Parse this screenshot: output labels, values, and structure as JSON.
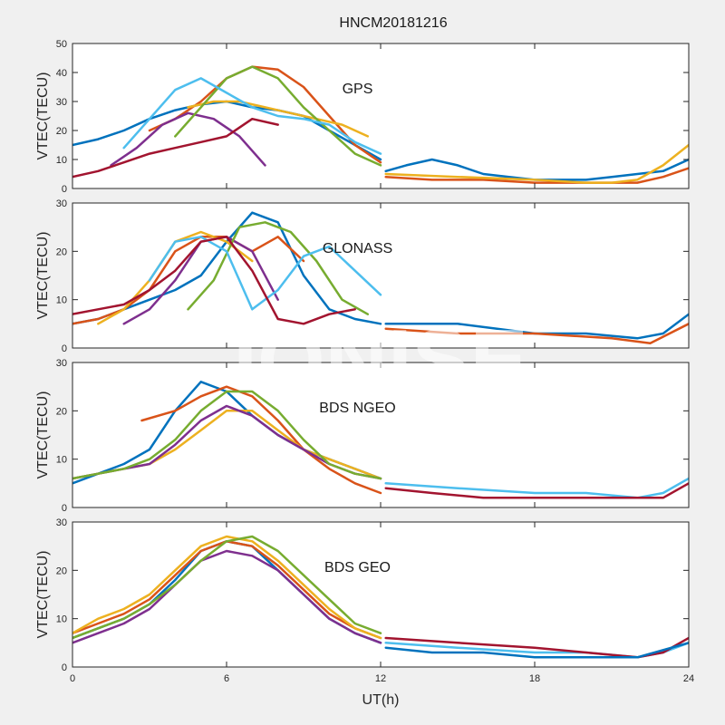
{
  "title": "HNCM20181216",
  "watermark": "IONISE",
  "colors": [
    "#0072BD",
    "#D95319",
    "#EDB120",
    "#7E2F8E",
    "#77AC30",
    "#4DBEEE",
    "#A2142F"
  ],
  "chart_data": [
    {
      "type": "line",
      "annotation": "GPS",
      "ylabel": "VTEC(TECU)",
      "xlabel": "",
      "xlim": [
        0,
        24
      ],
      "ylim": [
        0,
        50
      ],
      "yticks": [
        0,
        10,
        20,
        30,
        40,
        50
      ],
      "xticks": [
        0,
        6,
        12,
        18,
        24
      ],
      "series": [
        {
          "x": [
            0,
            1,
            2,
            3,
            4,
            5,
            6,
            7,
            8,
            9,
            10,
            11,
            12
          ],
          "y": [
            15,
            17,
            20,
            24,
            27,
            29,
            30,
            28,
            27,
            25,
            20,
            15,
            10
          ]
        },
        {
          "x": [
            3,
            4,
            5,
            6,
            7,
            8,
            9,
            10,
            11,
            12
          ],
          "y": [
            20,
            24,
            30,
            38,
            42,
            41,
            35,
            25,
            15,
            9
          ]
        },
        {
          "x": [
            4.5,
            5.5,
            6.5,
            7.5,
            8.5,
            9.5,
            10.5,
            11.5
          ],
          "y": [
            28,
            30,
            30,
            28,
            26,
            24,
            22,
            18
          ]
        },
        {
          "x": [
            1.5,
            2.5,
            3.5,
            4.5,
            5.5,
            6.5,
            7.5
          ],
          "y": [
            8,
            14,
            22,
            26,
            24,
            18,
            8
          ]
        },
        {
          "x": [
            4,
            5,
            6,
            7,
            8,
            9,
            10,
            11,
            12
          ],
          "y": [
            18,
            28,
            38,
            42,
            38,
            28,
            20,
            12,
            8
          ]
        },
        {
          "x": [
            2,
            3,
            4,
            5,
            6,
            7,
            8,
            9,
            10,
            11,
            12
          ],
          "y": [
            14,
            24,
            34,
            38,
            33,
            28,
            25,
            24,
            22,
            16,
            12
          ]
        },
        {
          "x": [
            0,
            1,
            2,
            3,
            4,
            5,
            6,
            7,
            8
          ],
          "y": [
            4,
            6,
            9,
            12,
            14,
            16,
            18,
            24,
            22
          ]
        },
        {
          "x": [
            12.2,
            13,
            14,
            15,
            16,
            17,
            18,
            19,
            20,
            21,
            22,
            23,
            24
          ],
          "y": [
            6,
            8,
            10,
            8,
            5,
            4,
            3,
            3,
            3,
            4,
            5,
            6,
            10
          ]
        },
        {
          "x": [
            12.2,
            14,
            16,
            18,
            20,
            22,
            23,
            24
          ],
          "y": [
            4,
            3,
            3,
            2,
            2,
            2,
            4,
            7
          ]
        },
        {
          "x": [
            12.2,
            15,
            18,
            20,
            21,
            22,
            23,
            24
          ],
          "y": [
            5,
            4,
            3,
            2,
            2,
            3,
            8,
            15
          ]
        }
      ]
    },
    {
      "type": "line",
      "annotation": "GLONASS",
      "ylabel": "VTEC(TECU)",
      "xlabel": "",
      "xlim": [
        0,
        24
      ],
      "ylim": [
        0,
        30
      ],
      "yticks": [
        0,
        10,
        20,
        30
      ],
      "xticks": [
        0,
        6,
        12,
        18,
        24
      ],
      "series": [
        {
          "x": [
            0,
            1,
            2,
            3,
            4,
            5,
            6,
            7,
            8,
            9,
            10,
            11,
            12
          ],
          "y": [
            5,
            6,
            8,
            10,
            12,
            15,
            22,
            28,
            26,
            15,
            8,
            6,
            5
          ]
        },
        {
          "x": [
            0,
            1,
            2,
            3,
            4,
            5,
            6,
            7,
            8,
            9
          ],
          "y": [
            5,
            6,
            8,
            12,
            20,
            23,
            23,
            20,
            23,
            18
          ]
        },
        {
          "x": [
            1,
            2,
            3,
            4,
            5,
            6,
            7
          ],
          "y": [
            5,
            8,
            14,
            22,
            24,
            22,
            18
          ]
        },
        {
          "x": [
            2,
            3,
            4,
            5,
            6,
            7,
            8
          ],
          "y": [
            5,
            8,
            14,
            22,
            23,
            20,
            10
          ]
        },
        {
          "x": [
            4.5,
            5.5,
            6.5,
            7.5,
            8.5,
            9.5,
            10.5,
            11.5
          ],
          "y": [
            8,
            14,
            25,
            26,
            24,
            18,
            10,
            7
          ]
        },
        {
          "x": [
            3,
            4,
            5,
            6,
            7,
            8,
            9,
            10,
            11,
            12
          ],
          "y": [
            14,
            22,
            23,
            20,
            8,
            12,
            19,
            21,
            16,
            11
          ]
        },
        {
          "x": [
            0,
            1,
            2,
            3,
            4,
            5,
            6,
            7,
            8,
            9,
            10,
            11
          ],
          "y": [
            7,
            8,
            9,
            12,
            16,
            22,
            23,
            16,
            6,
            5,
            7,
            8
          ]
        },
        {
          "x": [
            12.2,
            15,
            18,
            20,
            22,
            23,
            24
          ],
          "y": [
            5,
            5,
            3,
            3,
            2,
            3,
            7
          ]
        },
        {
          "x": [
            12.2,
            15,
            18,
            21,
            22.5,
            24
          ],
          "y": [
            4,
            3,
            3,
            2,
            1,
            5
          ]
        }
      ]
    },
    {
      "type": "line",
      "annotation": "BDS NGEO",
      "ylabel": "VTEC(TECU)",
      "xlabel": "",
      "xlim": [
        0,
        24
      ],
      "ylim": [
        0,
        30
      ],
      "yticks": [
        0,
        10,
        20,
        30
      ],
      "xticks": [
        0,
        6,
        12,
        18,
        24
      ],
      "series": [
        {
          "x": [
            0,
            1,
            2,
            3,
            4,
            5,
            6,
            7,
            8,
            9,
            10,
            11,
            12
          ],
          "y": [
            5,
            7,
            9,
            12,
            20,
            26,
            24,
            19,
            15,
            12,
            10,
            8,
            6
          ]
        },
        {
          "x": [
            2.7,
            4,
            5,
            6,
            7,
            8,
            9,
            10,
            11,
            12
          ],
          "y": [
            18,
            20,
            23,
            25,
            23,
            18,
            12,
            8,
            5,
            3
          ]
        },
        {
          "x": [
            0,
            1,
            2,
            3,
            4,
            5,
            6,
            7,
            8,
            9,
            10,
            11,
            12
          ],
          "y": [
            6,
            7,
            8,
            9,
            12,
            16,
            20,
            20,
            16,
            12,
            10,
            8,
            6
          ]
        },
        {
          "x": [
            0,
            1,
            2,
            3,
            4,
            5,
            6,
            7,
            8,
            9,
            10,
            11,
            12
          ],
          "y": [
            6,
            7,
            8,
            9,
            13,
            18,
            21,
            19,
            15,
            12,
            9,
            7,
            6
          ]
        },
        {
          "x": [
            0,
            1,
            2,
            3,
            4,
            5,
            6,
            7,
            8,
            9,
            10,
            11,
            12
          ],
          "y": [
            6,
            7,
            8,
            10,
            14,
            20,
            24,
            24,
            20,
            14,
            9,
            7,
            6
          ]
        },
        {
          "x": [
            12.2,
            15,
            18,
            20,
            22,
            23,
            24
          ],
          "y": [
            5,
            4,
            3,
            3,
            2,
            3,
            6
          ]
        },
        {
          "x": [
            12.2,
            14,
            16,
            18,
            21,
            23,
            24
          ],
          "y": [
            4,
            3,
            2,
            2,
            2,
            2,
            5
          ]
        }
      ]
    },
    {
      "type": "line",
      "annotation": "BDS GEO",
      "ylabel": "VTEC(TECU)",
      "xlabel": "UT(h)",
      "xlim": [
        0,
        24
      ],
      "ylim": [
        0,
        30
      ],
      "yticks": [
        0,
        10,
        20,
        30
      ],
      "xticks": [
        0,
        6,
        12,
        18,
        24
      ],
      "xticklabels": [
        "0",
        "6",
        "12",
        "18",
        "24"
      ],
      "series": [
        {
          "x": [
            0,
            1,
            2,
            3,
            4,
            5,
            6,
            7,
            8,
            9,
            10,
            11,
            12
          ],
          "y": [
            6,
            8,
            10,
            13,
            18,
            24,
            26,
            25,
            20,
            15,
            10,
            7,
            5
          ]
        },
        {
          "x": [
            0,
            1,
            2,
            3,
            4,
            5,
            6,
            7,
            8,
            9,
            10,
            11,
            12
          ],
          "y": [
            7,
            9,
            11,
            14,
            19,
            24,
            26,
            25,
            21,
            16,
            11,
            8,
            6
          ]
        },
        {
          "x": [
            0,
            1,
            2,
            3,
            4,
            5,
            6,
            7,
            8,
            9,
            10,
            11,
            12
          ],
          "y": [
            7,
            10,
            12,
            15,
            20,
            25,
            27,
            26,
            22,
            17,
            12,
            8,
            6
          ]
        },
        {
          "x": [
            0,
            1,
            2,
            3,
            4,
            5,
            6,
            7,
            8,
            9,
            10,
            11,
            12
          ],
          "y": [
            5,
            7,
            9,
            12,
            17,
            22,
            24,
            23,
            20,
            15,
            10,
            7,
            5
          ]
        },
        {
          "x": [
            0,
            1,
            2,
            3,
            4,
            5,
            6,
            7,
            8,
            9,
            10,
            11,
            12
          ],
          "y": [
            6,
            8,
            10,
            13,
            17,
            22,
            26,
            27,
            24,
            19,
            14,
            9,
            7
          ]
        },
        {
          "x": [
            12.2,
            15,
            18,
            20,
            22,
            23,
            24
          ],
          "y": [
            5,
            4,
            3,
            3,
            2,
            3,
            5
          ]
        },
        {
          "x": [
            12.2,
            15,
            18,
            20,
            22,
            23,
            24
          ],
          "y": [
            6,
            5,
            4,
            3,
            2,
            3,
            6
          ]
        },
        {
          "x": [
            12.2,
            14,
            16,
            18,
            20,
            22,
            24
          ],
          "y": [
            4,
            3,
            3,
            2,
            2,
            2,
            5
          ]
        }
      ]
    }
  ]
}
